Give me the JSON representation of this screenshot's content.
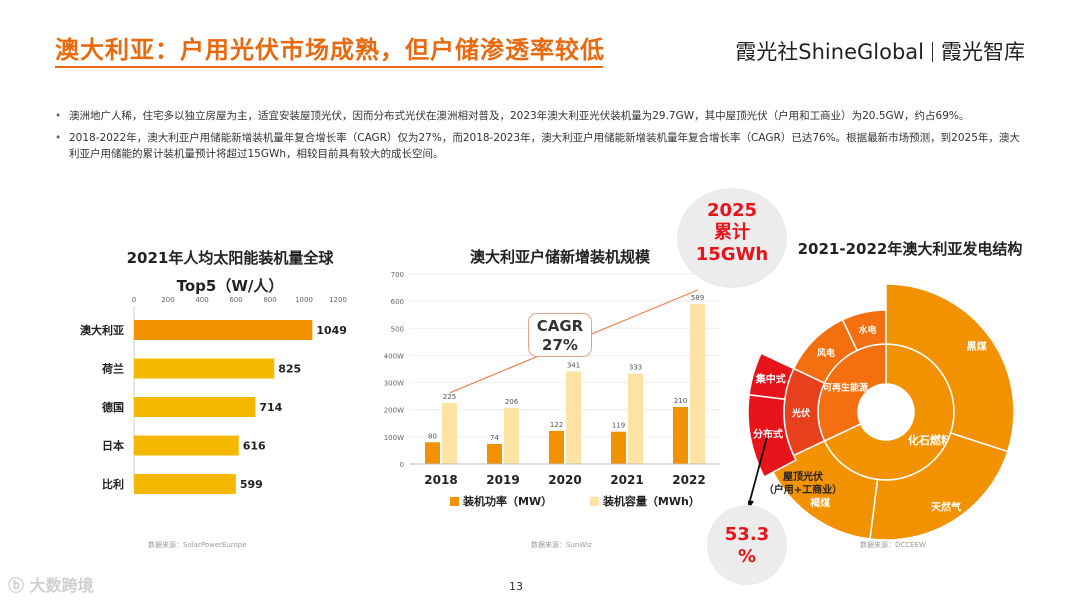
{
  "header": {
    "title": "澳大利亚：户用光伏市场成熟，但户储渗透率较低",
    "brand_left": "霞光社ShineGlobal",
    "brand_right": "霞光智库"
  },
  "bullets": [
    "澳洲地广人稀，住宅多以独立房屋为主，适宜安装屋顶光伏，因而分布式光伏在澳洲相对普及，2023年澳大利亚光伏装机量为29.7GW，其中屋顶光伏（户用和工商业）为20.5GW，约占69%。",
    "2018-2022年，澳大利亚户用储能新增装机量年复合增长率（CAGR）仅为27%，而2018-2023年，澳大利亚户用储能新增装机量年复合增长率（CAGR）已达76%。根据最新市场预测，到2025年，澳大利亚户用储能的累计装机量预计将超过15GWh，相较目前具有较大的成长空间。"
  ],
  "colors": {
    "accent": "#e86a10",
    "orange": "#f39200",
    "yellow": "#f5b800",
    "light_yellow": "#fde3a3",
    "red": "#e8141c"
  },
  "bubbles": {
    "top": {
      "l1": "2025",
      "l2": "累计",
      "l3": "15GWh"
    },
    "bottom": {
      "l1": "53.3",
      "l2": "%"
    }
  },
  "cagr": {
    "label": "CAGR",
    "value": "27%"
  },
  "chart_data": [
    {
      "type": "bar",
      "orientation": "horizontal",
      "title_line1": "2021年人均太阳能装机量全球",
      "title_line2": "Top5（W/人）",
      "categories": [
        "澳大利亚",
        "荷兰",
        "德国",
        "日本",
        "比利"
      ],
      "values": [
        1049,
        825,
        714,
        616,
        599
      ],
      "xlim": [
        0,
        1200
      ],
      "ticks": [
        0,
        200,
        400,
        600,
        800,
        1000,
        1200
      ],
      "source": "数据来源：SolarPowerEurope"
    },
    {
      "type": "bar",
      "title": "澳大利亚户储新增装机规模",
      "categories": [
        "2018",
        "2019",
        "2020",
        "2021",
        "2022"
      ],
      "series": [
        {
          "name": "装机功率（MW）",
          "values": [
            80,
            74,
            122,
            119,
            210
          ]
        },
        {
          "name": "装机容量（MWh）",
          "values": [
            225,
            206,
            341,
            333,
            589
          ]
        }
      ],
      "ylim": [
        0,
        700
      ],
      "yticks": [
        0,
        100,
        200,
        300,
        400,
        500,
        600,
        700
      ],
      "ytick_labels": [
        "0",
        "100W",
        "200W",
        "300W",
        "400W",
        "500",
        "600",
        "700"
      ],
      "source": "数据来源：SunWiz"
    },
    {
      "type": "sunburst",
      "title": "2021-2022年澳大利亚发电结构",
      "inner": [
        {
          "name": "化石燃料",
          "value": 68.0
        },
        {
          "name": "可再生能源",
          "value": 32.0
        }
      ],
      "middle_renewable": [
        {
          "name": "光伏",
          "value": 14.0
        },
        {
          "name": "风电",
          "value": 11.0
        },
        {
          "name": "水电",
          "value": 7.0
        }
      ],
      "outer": [
        {
          "name": "黑煤",
          "value": 30.0
        },
        {
          "name": "天然气",
          "value": 22.0
        },
        {
          "name": "褐煤",
          "value": 16.0
        },
        {
          "name": "分布式",
          "value": 9.0
        },
        {
          "name": "集中式",
          "value": 5.0
        }
      ],
      "annotation": "屋顶光伏\n（户用+工商业）",
      "annotation_l1": "屋顶光伏",
      "annotation_l2": "（户用+工商业）",
      "source": "数据来源：DCCEEW"
    }
  ],
  "footer": {
    "page": "13",
    "watermark": "大数跨境"
  }
}
